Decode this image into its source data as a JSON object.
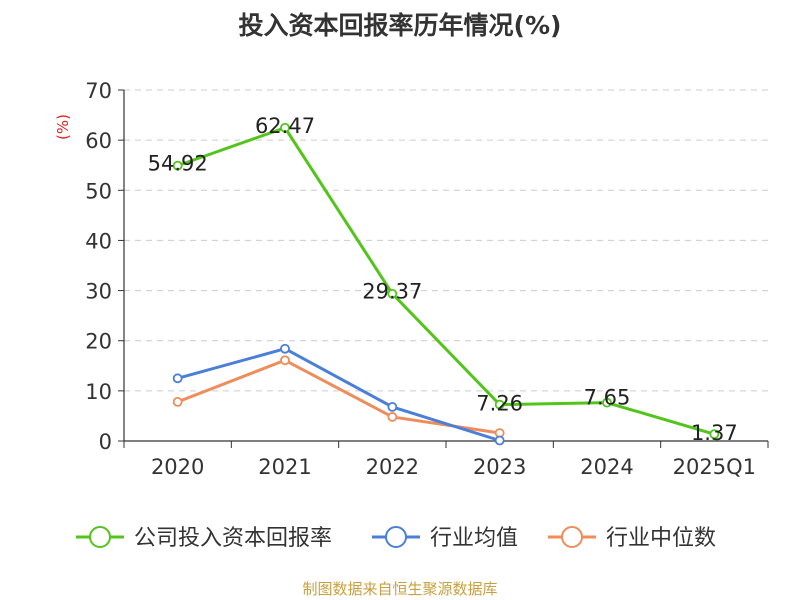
{
  "chart_data": {
    "type": "line",
    "title": "投入资本回报率历年情况(%)",
    "ylabel": "(%)",
    "xlabel": "",
    "ylim": [
      0,
      70
    ],
    "yticks": [
      0,
      10,
      20,
      30,
      40,
      50,
      60,
      70
    ],
    "categories": [
      "2020",
      "2021",
      "2022",
      "2023",
      "2024",
      "2025Q1"
    ],
    "grid": true,
    "legend_position": "bottom",
    "series": [
      {
        "name": "公司投入资本回报率",
        "color": "#52c41a",
        "values": [
          54.92,
          62.47,
          29.37,
          7.26,
          7.65,
          1.37
        ],
        "labels": [
          "54.92",
          "62.47",
          "29.37",
          "7.26",
          "7.65",
          "1.37"
        ]
      },
      {
        "name": "行业均值",
        "color": "#4a7fd8",
        "values": [
          12.5,
          18.4,
          6.8,
          0.1,
          null,
          null
        ]
      },
      {
        "name": "行业中位数",
        "color": "#f08c5a",
        "values": [
          7.8,
          16.1,
          4.8,
          1.6,
          null,
          null
        ]
      }
    ],
    "source": "制图数据来自恒生聚源数据库",
    "source_color": "#c8a040",
    "ylabel_color": "#e02020"
  }
}
